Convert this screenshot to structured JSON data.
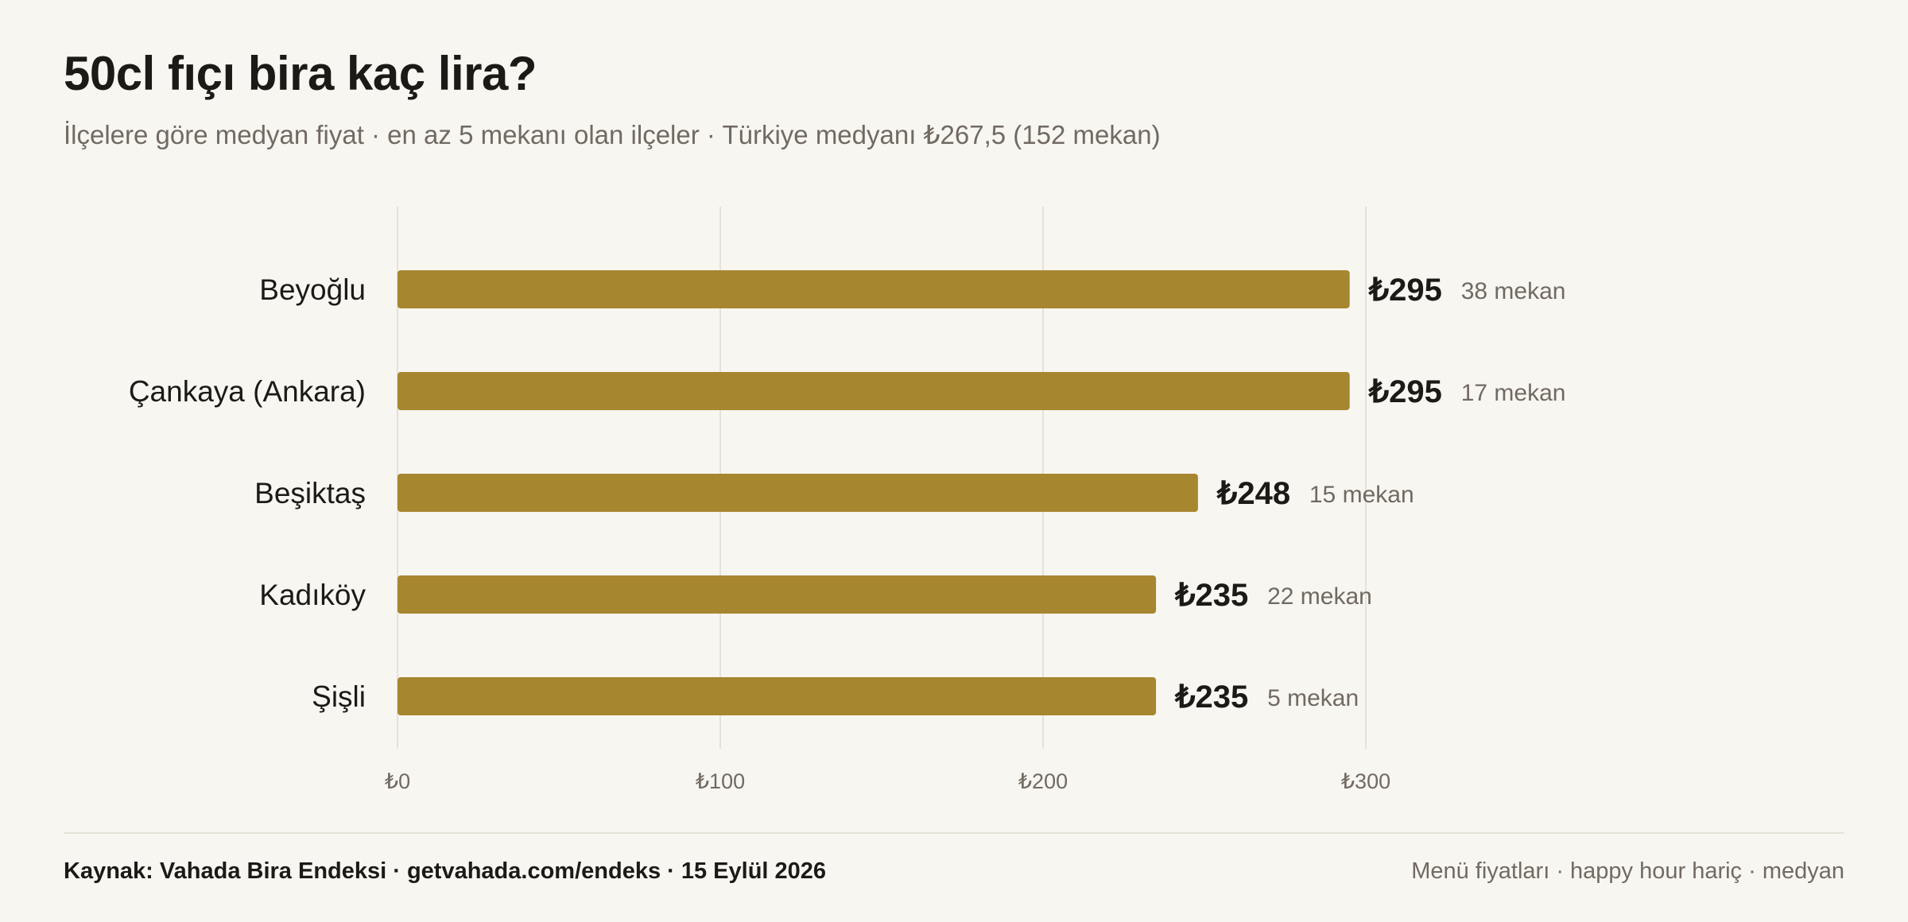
{
  "header": {
    "title": "50cl fıçı bira kaç lira?",
    "subtitle": "İlçelere göre medyan fiyat · en az 5 mekanı olan ilçeler · Türkiye medyanı ₺267,5 (152 mekan)"
  },
  "footer": {
    "source": "Kaynak: Vahada Bira Endeksi · getvahada.com/endeks · 15 Eylül 2026",
    "note": "Menü fiyatları · happy hour hariç · medyan"
  },
  "colors": {
    "bar": "#a78630",
    "grid": "#e6e2da",
    "label": "#1c1a17",
    "muted": "#716a61",
    "background": "#f8f6f1"
  },
  "chart_data": {
    "type": "bar",
    "orientation": "horizontal",
    "title": "50cl fıçı bira kaç lira?",
    "xlabel": "",
    "ylabel": "",
    "xlim": [
      0,
      300
    ],
    "ticks": [
      0,
      100,
      200,
      300
    ],
    "tick_labels": [
      "₺0",
      "₺100",
      "₺200",
      "₺300"
    ],
    "currency": "₺",
    "grid": true,
    "categories": [
      "Beyoğlu",
      "Çankaya (Ankara)",
      "Beşiktaş",
      "Kadıköy",
      "Şişli"
    ],
    "values": [
      295,
      295,
      248,
      235,
      235
    ],
    "value_labels": [
      "₺295",
      "₺295",
      "₺248",
      "₺235",
      "₺235"
    ],
    "counts": [
      "38 mekan",
      "17 mekan",
      "15 mekan",
      "22 mekan",
      "5 mekan"
    ]
  }
}
